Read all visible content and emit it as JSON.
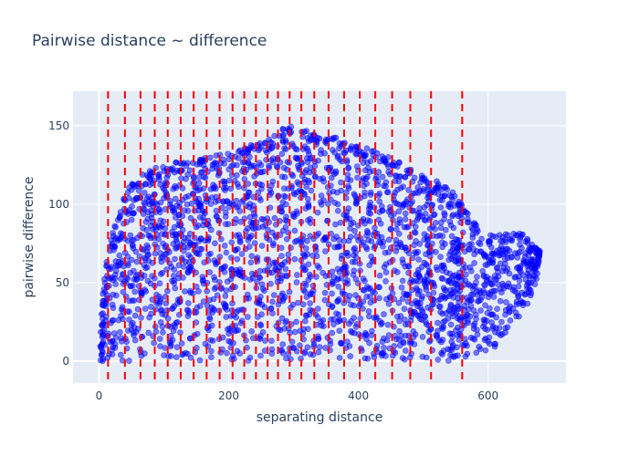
{
  "chart_data": {
    "type": "scatter",
    "title": "Pairwise distance ~ difference",
    "xlabel": "separating distance",
    "ylabel": "pairwise difference",
    "xlim": [
      -40,
      720
    ],
    "ylim": [
      -14,
      172
    ],
    "xticks": [
      0,
      200,
      400,
      600
    ],
    "yticks": [
      0,
      50,
      100,
      150
    ],
    "grid": true,
    "legend": "none",
    "marker_color": "#0000ff",
    "marker_opacity": 0.5,
    "background_color": "#e5ecf6",
    "title_color": "#2a3f5f",
    "vline_color": "#ff0000",
    "vline_style": "dashed",
    "vlines_x": [
      14,
      40,
      64,
      86,
      106,
      126,
      146,
      166,
      186,
      206,
      224,
      242,
      260,
      276,
      294,
      312,
      332,
      354,
      378,
      402,
      426,
      452,
      480,
      512,
      560
    ],
    "envelope": [
      [
        2,
        18
      ],
      [
        6,
        45
      ],
      [
        10,
        62
      ],
      [
        14,
        70
      ],
      [
        20,
        80
      ],
      [
        30,
        95
      ],
      [
        40,
        108
      ],
      [
        55,
        115
      ],
      [
        70,
        120
      ],
      [
        90,
        124
      ],
      [
        110,
        126
      ],
      [
        140,
        128
      ],
      [
        170,
        130
      ],
      [
        200,
        133
      ],
      [
        230,
        137
      ],
      [
        260,
        142
      ],
      [
        290,
        150
      ],
      [
        310,
        148
      ],
      [
        340,
        145
      ],
      [
        370,
        143
      ],
      [
        400,
        138
      ],
      [
        430,
        133
      ],
      [
        460,
        128
      ],
      [
        490,
        122
      ],
      [
        510,
        118
      ],
      [
        530,
        112
      ],
      [
        545,
        108
      ],
      [
        560,
        100
      ],
      [
        575,
        90
      ],
      [
        590,
        82
      ],
      [
        610,
        80
      ],
      [
        630,
        82
      ],
      [
        650,
        82
      ],
      [
        665,
        78
      ],
      [
        680,
        70
      ]
    ],
    "lower_envelope": [
      [
        560,
        0
      ],
      [
        580,
        2
      ],
      [
        600,
        5
      ],
      [
        620,
        10
      ],
      [
        640,
        18
      ],
      [
        660,
        35
      ],
      [
        675,
        50
      ],
      [
        680,
        70
      ]
    ]
  }
}
